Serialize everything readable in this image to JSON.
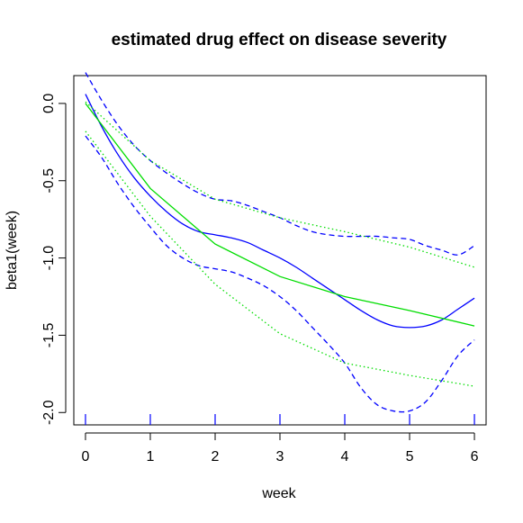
{
  "chart_data": {
    "type": "line",
    "title": "estimated drug effect on disease severity",
    "xlabel": "week",
    "ylabel": "beta1(week)",
    "xlim": [
      -0.18,
      6.18
    ],
    "ylim": [
      -2.08,
      0.18
    ],
    "x_ticks": [
      0,
      1,
      2,
      3,
      4,
      5,
      6
    ],
    "x_tick_labels": [
      "0",
      "1",
      "2",
      "3",
      "4",
      "5",
      "6"
    ],
    "y_ticks": [
      0.0,
      -0.5,
      -1.0,
      -1.5,
      -2.0
    ],
    "y_tick_labels": [
      "0.0",
      "-0.5",
      "-1.0",
      "-1.5",
      "-2.0"
    ],
    "rug_x": [
      0,
      1,
      2,
      3,
      4,
      5,
      6
    ],
    "rug_color": "#0000ff",
    "series": [
      {
        "color": "#0000ff",
        "style": "solid",
        "x": [
          0,
          0.25,
          0.5,
          0.75,
          1,
          1.25,
          1.5,
          1.75,
          2,
          2.25,
          2.5,
          2.75,
          3,
          3.25,
          3.5,
          3.75,
          4,
          4.25,
          4.5,
          4.75,
          5,
          5.25,
          5.5,
          5.75,
          6
        ],
        "y": [
          0.06,
          -0.15,
          -0.33,
          -0.48,
          -0.6,
          -0.7,
          -0.78,
          -0.83,
          -0.85,
          -0.87,
          -0.9,
          -0.95,
          -1.0,
          -1.06,
          -1.13,
          -1.2,
          -1.27,
          -1.34,
          -1.4,
          -1.44,
          -1.45,
          -1.44,
          -1.4,
          -1.33,
          -1.26
        ]
      },
      {
        "color": "#0000ff",
        "style": "dashed",
        "x": [
          0,
          0.25,
          0.5,
          0.75,
          1,
          1.25,
          1.5,
          1.75,
          2,
          2.25,
          2.5,
          2.75,
          3,
          3.25,
          3.5,
          3.75,
          4,
          4.25,
          4.5,
          4.75,
          5,
          5.25,
          5.5,
          5.75,
          6
        ],
        "y": [
          0.2,
          0.02,
          -0.14,
          -0.27,
          -0.37,
          -0.45,
          -0.52,
          -0.58,
          -0.62,
          -0.63,
          -0.66,
          -0.7,
          -0.74,
          -0.79,
          -0.83,
          -0.85,
          -0.86,
          -0.86,
          -0.86,
          -0.87,
          -0.88,
          -0.92,
          -0.95,
          -0.98,
          -0.92
        ]
      },
      {
        "color": "#0000ff",
        "style": "dashed",
        "x": [
          0,
          0.25,
          0.5,
          0.75,
          1,
          1.25,
          1.5,
          1.75,
          2,
          2.25,
          2.5,
          2.75,
          3,
          3.25,
          3.5,
          3.75,
          4,
          4.25,
          4.5,
          4.75,
          5,
          5.25,
          5.5,
          5.75,
          6
        ],
        "y": [
          -0.21,
          -0.35,
          -0.52,
          -0.67,
          -0.8,
          -0.92,
          -1.0,
          -1.05,
          -1.07,
          -1.09,
          -1.13,
          -1.18,
          -1.25,
          -1.34,
          -1.45,
          -1.56,
          -1.68,
          -1.84,
          -1.95,
          -1.99,
          -1.99,
          -1.93,
          -1.79,
          -1.63,
          -1.53
        ]
      },
      {
        "color": "#00dd00",
        "style": "solid",
        "x": [
          0,
          1,
          2,
          3,
          4,
          5,
          6
        ],
        "y": [
          0.0,
          -0.55,
          -0.91,
          -1.12,
          -1.25,
          -1.34,
          -1.44
        ]
      },
      {
        "color": "#00dd00",
        "style": "dotted",
        "x": [
          0,
          1,
          2,
          3,
          4,
          5,
          6
        ],
        "y": [
          0.01,
          -0.37,
          -0.62,
          -0.74,
          -0.83,
          -0.93,
          -1.06
        ]
      },
      {
        "color": "#00dd00",
        "style": "dotted",
        "x": [
          0,
          1,
          2,
          3,
          4,
          5,
          6
        ],
        "y": [
          -0.18,
          -0.73,
          -1.17,
          -1.49,
          -1.68,
          -1.76,
          -1.83
        ]
      }
    ]
  }
}
